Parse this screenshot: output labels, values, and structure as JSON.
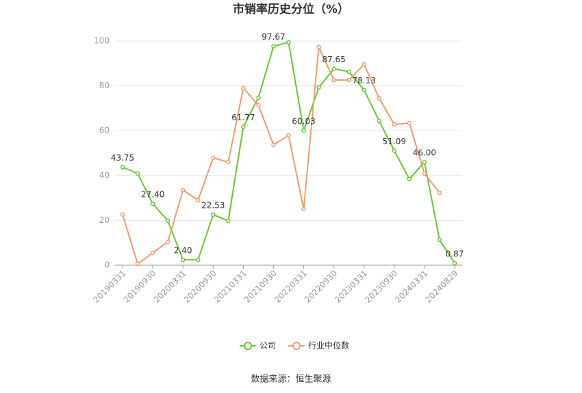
{
  "chart_data": {
    "type": "line",
    "title": "市销率历史分位（%）",
    "source": "数据来源：恒生聚源",
    "categories": [
      "20190331",
      null,
      "20190930",
      null,
      "20200331",
      null,
      "20200930",
      null,
      "20210331",
      null,
      "20210930",
      null,
      "20220331",
      null,
      "20220930",
      null,
      "20230331",
      null,
      "20230930",
      null,
      "20240331",
      null,
      "20240829"
    ],
    "series": [
      {
        "name": "公司",
        "color": "#66c732",
        "values": [
          43.75,
          40.9,
          27.4,
          19.8,
          2.4,
          2.4,
          22.53,
          19.8,
          61.77,
          74.7,
          97.67,
          99.4,
          60.03,
          79.3,
          87.65,
          86.3,
          78.13,
          64.3,
          51.09,
          38.4,
          46.0,
          11.3,
          0.87
        ],
        "value_labels": [
          "43.75",
          null,
          "27.40",
          null,
          "2.40",
          null,
          "22.53",
          null,
          "61.77",
          null,
          "97.67",
          null,
          "60.03",
          null,
          "87.65",
          null,
          "78.13",
          null,
          "51.09",
          null,
          "46.00",
          null,
          "0.87"
        ]
      },
      {
        "name": "行业中位数",
        "color": "#f59a6e",
        "values": [
          22.6,
          0.6,
          5.5,
          10.4,
          33.5,
          29,
          47.9,
          46,
          79,
          71.3,
          53.7,
          57.9,
          25,
          97.3,
          82.6,
          82.6,
          89.6,
          74.4,
          62.8,
          63.4,
          40.9,
          32.3,
          null
        ]
      }
    ],
    "ylim": [
      0,
      100
    ],
    "yticks": [
      0,
      20,
      40,
      60,
      80,
      100
    ],
    "grid": true,
    "legend": "bottom"
  }
}
